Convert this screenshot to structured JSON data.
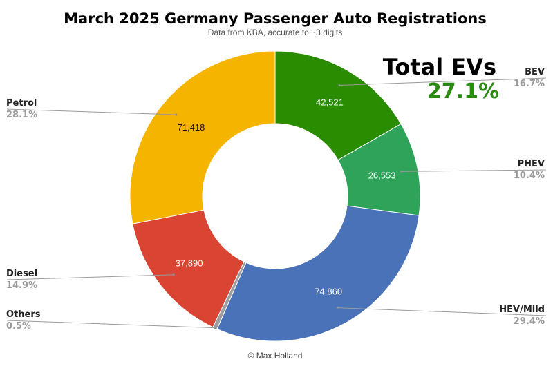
{
  "chart_data": {
    "type": "pie",
    "title": "March 2025 Germany Passenger Auto Registrations",
    "subtitle": "Data from KBA, accurate to ~3 digits",
    "slices": [
      {
        "label": "BEV",
        "value": 42521,
        "value_text": "42,521",
        "percent_text": "16.7%",
        "color": "#2a8c00"
      },
      {
        "label": "PHEV",
        "value": 26553,
        "value_text": "26,553",
        "percent_text": "10.4%",
        "color": "#2fa35a"
      },
      {
        "label": "HEV/Mild",
        "value": 74860,
        "value_text": "74,860",
        "percent_text": "29.4%",
        "color": "#4a72b8"
      },
      {
        "label": "Others",
        "value": 1270,
        "value_text": "",
        "percent_text": "0.5%",
        "color": "#9e9e9e"
      },
      {
        "label": "Diesel",
        "value": 37890,
        "value_text": "37,890",
        "percent_text": "14.9%",
        "color": "#d94433"
      },
      {
        "label": "Petrol",
        "value": 71418,
        "value_text": "71,418",
        "percent_text": "28.1%",
        "color": "#f4b400"
      }
    ]
  },
  "highlight": {
    "label": "Total EVs",
    "value": "27.1%",
    "color": "#2a8a12"
  },
  "credit": "© Max Holland"
}
